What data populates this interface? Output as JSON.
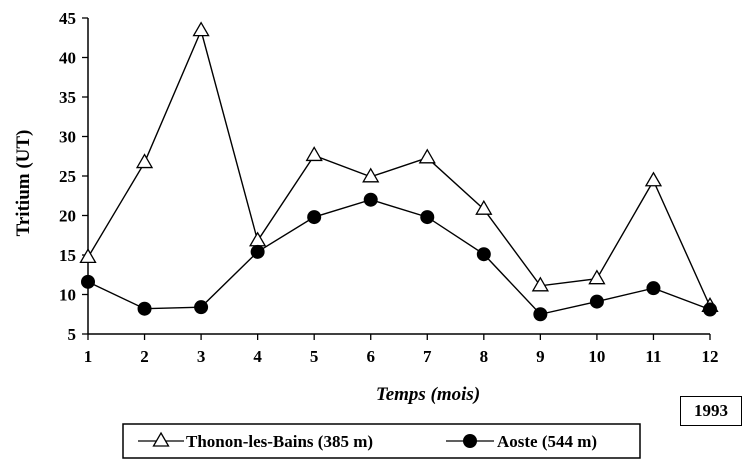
{
  "chart_data": {
    "type": "line",
    "xlabel": "Temps (mois)",
    "ylabel": "Tritium (UT)",
    "x": [
      1,
      2,
      3,
      4,
      5,
      6,
      7,
      8,
      9,
      10,
      11,
      12
    ],
    "xlim": [
      1,
      12
    ],
    "ylim": [
      5,
      45
    ],
    "yticks": [
      5,
      10,
      15,
      20,
      25,
      30,
      35,
      40,
      45
    ],
    "grid": false,
    "legend_position": "bottom",
    "series": [
      {
        "name": "Thonon-les-Bains (385 m)",
        "marker": "open-triangle",
        "color": "#000000",
        "values": [
          14.7,
          26.7,
          43.4,
          16.8,
          27.6,
          24.9,
          27.3,
          20.8,
          11.1,
          12.0,
          24.4,
          8.5
        ]
      },
      {
        "name": "Aoste (544 m)",
        "marker": "filled-circle",
        "color": "#000000",
        "values": [
          11.6,
          8.2,
          8.4,
          15.4,
          19.8,
          22.0,
          19.8,
          15.1,
          7.5,
          9.1,
          10.8,
          8.1
        ]
      }
    ]
  },
  "annotation": "1993"
}
